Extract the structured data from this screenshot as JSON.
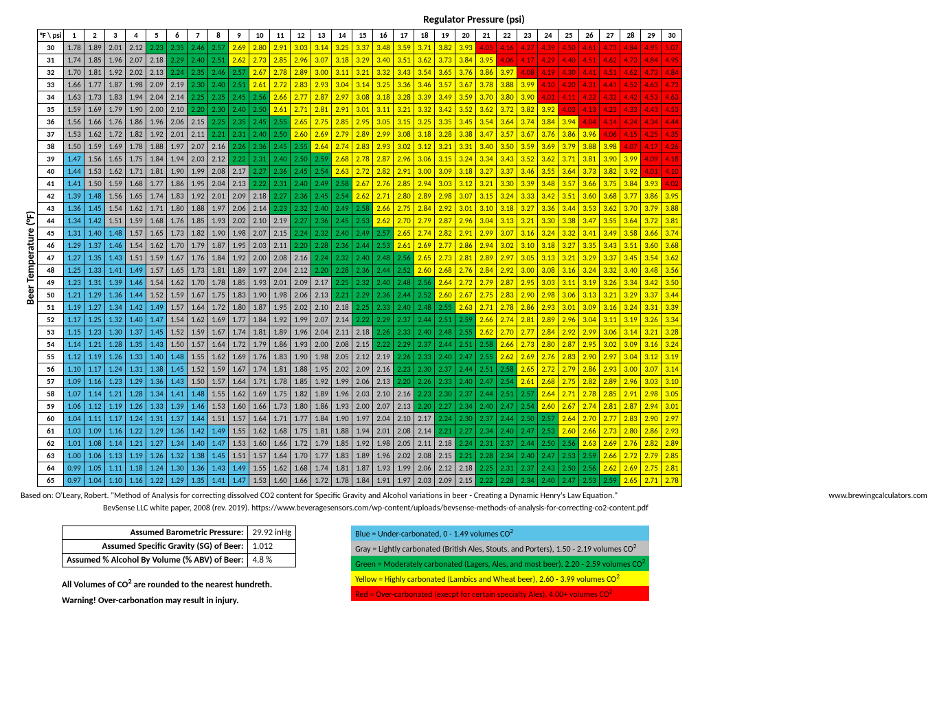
{
  "title_top": "Regulator Pressure (psi)",
  "y_axis_label": "Beer Temperature (°F)",
  "corner_label": "°F \\ psi",
  "psi_headers": [
    1,
    2,
    3,
    4,
    5,
    6,
    7,
    8,
    9,
    10,
    11,
    12,
    13,
    14,
    15,
    16,
    17,
    18,
    19,
    20,
    21,
    22,
    23,
    24,
    25,
    26,
    27,
    28,
    29,
    30
  ],
  "temps": [
    30,
    31,
    32,
    33,
    34,
    35,
    36,
    37,
    38,
    39,
    40,
    41,
    42,
    43,
    44,
    45,
    46,
    47,
    48,
    49,
    50,
    51,
    52,
    53,
    54,
    55,
    56,
    57,
    58,
    59,
    60,
    61,
    62,
    63,
    64,
    65
  ],
  "rows": [
    [
      1.78,
      1.89,
      2.01,
      2.12,
      2.23,
      2.35,
      2.46,
      2.57,
      2.69,
      2.8,
      2.91,
      3.03,
      3.14,
      3.25,
      3.37,
      3.48,
      3.59,
      3.71,
      3.82,
      3.93,
      4.05,
      4.16,
      4.27,
      4.39,
      4.5,
      4.61,
      4.73,
      4.84,
      4.95,
      5.07
    ],
    [
      1.74,
      1.85,
      1.96,
      2.07,
      2.18,
      2.29,
      2.4,
      2.51,
      2.62,
      2.73,
      2.85,
      2.96,
      3.07,
      3.18,
      3.29,
      3.4,
      3.51,
      3.62,
      3.73,
      3.84,
      3.95,
      4.06,
      4.17,
      4.29,
      4.4,
      4.51,
      4.62,
      4.73,
      4.84,
      4.95
    ],
    [
      1.7,
      1.81,
      1.92,
      2.02,
      2.13,
      2.24,
      2.35,
      2.46,
      2.57,
      2.67,
      2.78,
      2.89,
      3.0,
      3.11,
      3.21,
      3.32,
      3.43,
      3.54,
      3.65,
      3.76,
      3.86,
      3.97,
      4.08,
      4.19,
      4.3,
      4.41,
      4.51,
      4.62,
      4.73,
      4.84
    ],
    [
      1.66,
      1.77,
      1.87,
      1.98,
      2.09,
      2.19,
      2.3,
      2.4,
      2.51,
      2.61,
      2.72,
      2.83,
      2.93,
      3.04,
      3.14,
      3.25,
      3.36,
      3.46,
      3.57,
      3.67,
      3.78,
      3.88,
      3.99,
      4.1,
      4.2,
      4.31,
      4.41,
      4.52,
      4.63,
      4.73
    ],
    [
      1.63,
      1.73,
      1.83,
      1.94,
      2.04,
      2.14,
      2.25,
      2.35,
      2.45,
      2.56,
      2.66,
      2.77,
      2.87,
      2.97,
      3.08,
      3.18,
      3.28,
      3.39,
      3.49,
      3.59,
      3.7,
      3.8,
      3.9,
      4.01,
      4.11,
      4.22,
      4.32,
      4.42,
      4.53,
      4.63
    ],
    [
      1.59,
      1.69,
      1.79,
      1.9,
      2.0,
      2.1,
      2.2,
      2.3,
      2.4,
      2.5,
      2.61,
      2.71,
      2.81,
      2.91,
      3.01,
      3.11,
      3.21,
      3.32,
      3.42,
      3.52,
      3.62,
      3.72,
      3.82,
      3.92,
      4.03,
      4.13,
      4.23,
      4.33,
      4.43,
      4.53
    ],
    [
      1.56,
      1.66,
      1.76,
      1.86,
      1.96,
      2.06,
      2.15,
      2.25,
      2.35,
      2.45,
      2.55,
      2.65,
      2.75,
      2.85,
      2.95,
      3.05,
      3.15,
      3.25,
      3.35,
      3.45,
      3.54,
      3.64,
      3.74,
      3.84,
      3.94,
      4.04,
      4.14,
      4.24,
      4.34,
      4.44
    ],
    [
      1.53,
      1.62,
      1.72,
      1.82,
      1.92,
      2.01,
      2.11,
      2.21,
      2.31,
      2.4,
      2.5,
      2.6,
      2.69,
      2.79,
      2.89,
      2.99,
      3.08,
      3.18,
      3.28,
      3.38,
      3.47,
      3.57,
      3.67,
      3.76,
      3.86,
      3.96,
      4.06,
      4.15,
      4.25,
      4.35
    ],
    [
      1.5,
      1.59,
      1.69,
      1.78,
      1.88,
      1.97,
      2.07,
      2.16,
      2.26,
      2.36,
      2.45,
      2.55,
      2.64,
      2.74,
      2.83,
      2.93,
      3.02,
      3.12,
      3.21,
      3.31,
      3.4,
      3.5,
      3.59,
      3.69,
      3.79,
      3.88,
      3.98,
      4.07,
      4.17,
      4.26
    ],
    [
      1.47,
      1.56,
      1.65,
      1.75,
      1.84,
      1.94,
      2.03,
      2.12,
      2.22,
      2.31,
      2.4,
      2.5,
      2.59,
      2.68,
      2.78,
      2.87,
      2.96,
      3.06,
      3.15,
      3.24,
      3.34,
      3.43,
      3.52,
      3.62,
      3.71,
      3.81,
      3.9,
      3.99,
      4.09,
      4.18
    ],
    [
      1.44,
      1.53,
      1.62,
      1.71,
      1.81,
      1.9,
      1.99,
      2.08,
      2.17,
      2.27,
      2.36,
      2.45,
      2.54,
      2.63,
      2.72,
      2.82,
      2.91,
      3.0,
      3.09,
      3.18,
      3.27,
      3.37,
      3.46,
      3.55,
      3.64,
      3.73,
      3.82,
      3.92,
      4.01,
      4.1
    ],
    [
      1.41,
      1.5,
      1.59,
      1.68,
      1.77,
      1.86,
      1.95,
      2.04,
      2.13,
      2.22,
      2.31,
      2.4,
      2.49,
      2.58,
      2.67,
      2.76,
      2.85,
      2.94,
      3.03,
      3.12,
      3.21,
      3.3,
      3.39,
      3.48,
      3.57,
      3.66,
      3.75,
      3.84,
      3.93,
      4.02
    ],
    [
      1.39,
      1.48,
      1.56,
      1.65,
      1.74,
      1.83,
      1.92,
      2.01,
      2.09,
      2.18,
      2.27,
      2.36,
      2.45,
      2.54,
      2.62,
      2.71,
      2.8,
      2.89,
      2.98,
      3.07,
      3.15,
      3.24,
      3.33,
      3.42,
      3.51,
      3.6,
      3.68,
      3.77,
      3.86,
      3.95
    ],
    [
      1.36,
      1.45,
      1.54,
      1.62,
      1.71,
      1.8,
      1.88,
      1.97,
      2.06,
      2.14,
      2.23,
      2.32,
      2.4,
      2.49,
      2.58,
      2.66,
      2.75,
      2.84,
      2.92,
      3.01,
      3.1,
      3.18,
      3.27,
      3.36,
      3.44,
      3.53,
      3.62,
      3.7,
      3.79,
      3.88
    ],
    [
      1.34,
      1.42,
      1.51,
      1.59,
      1.68,
      1.76,
      1.85,
      1.93,
      2.02,
      2.1,
      2.19,
      2.27,
      2.36,
      2.45,
      2.53,
      2.62,
      2.7,
      2.79,
      2.87,
      2.96,
      3.04,
      3.13,
      3.21,
      3.3,
      3.38,
      3.47,
      3.55,
      3.64,
      3.72,
      3.81
    ],
    [
      1.31,
      1.4,
      1.48,
      1.57,
      1.65,
      1.73,
      1.82,
      1.9,
      1.98,
      2.07,
      2.15,
      2.24,
      2.32,
      2.4,
      2.49,
      2.57,
      2.65,
      2.74,
      2.82,
      2.91,
      2.99,
      3.07,
      3.16,
      3.24,
      3.32,
      3.41,
      3.49,
      3.58,
      3.66,
      3.74
    ],
    [
      1.29,
      1.37,
      1.46,
      1.54,
      1.62,
      1.7,
      1.79,
      1.87,
      1.95,
      2.03,
      2.11,
      2.2,
      2.28,
      2.36,
      2.44,
      2.53,
      2.61,
      2.69,
      2.77,
      2.86,
      2.94,
      3.02,
      3.1,
      3.18,
      3.27,
      3.35,
      3.43,
      3.51,
      3.6,
      3.68
    ],
    [
      1.27,
      1.35,
      1.43,
      1.51,
      1.59,
      1.67,
      1.76,
      1.84,
      1.92,
      2.0,
      2.08,
      2.16,
      2.24,
      2.32,
      2.4,
      2.48,
      2.56,
      2.65,
      2.73,
      2.81,
      2.89,
      2.97,
      3.05,
      3.13,
      3.21,
      3.29,
      3.37,
      3.45,
      3.54,
      3.62
    ],
    [
      1.25,
      1.33,
      1.41,
      1.49,
      1.57,
      1.65,
      1.73,
      1.81,
      1.89,
      1.97,
      2.04,
      2.12,
      2.2,
      2.28,
      2.36,
      2.44,
      2.52,
      2.6,
      2.68,
      2.76,
      2.84,
      2.92,
      3.0,
      3.08,
      3.16,
      3.24,
      3.32,
      3.4,
      3.48,
      3.56
    ],
    [
      1.23,
      1.31,
      1.39,
      1.46,
      1.54,
      1.62,
      1.7,
      1.78,
      1.85,
      1.93,
      2.01,
      2.09,
      2.17,
      2.25,
      2.32,
      2.4,
      2.48,
      2.56,
      2.64,
      2.72,
      2.79,
      2.87,
      2.95,
      3.03,
      3.11,
      3.19,
      3.26,
      3.34,
      3.42,
      3.5
    ],
    [
      1.21,
      1.29,
      1.36,
      1.44,
      1.52,
      1.59,
      1.67,
      1.75,
      1.83,
      1.9,
      1.98,
      2.06,
      2.13,
      2.21,
      2.29,
      2.36,
      2.44,
      2.52,
      2.6,
      2.67,
      2.75,
      2.83,
      2.9,
      2.98,
      3.06,
      3.13,
      3.21,
      3.29,
      3.37,
      3.44
    ],
    [
      1.19,
      1.27,
      1.34,
      1.42,
      1.49,
      1.57,
      1.64,
      1.72,
      1.8,
      1.87,
      1.95,
      2.02,
      2.1,
      2.18,
      2.25,
      2.33,
      2.4,
      2.48,
      2.55,
      2.63,
      2.71,
      2.78,
      2.86,
      2.93,
      3.01,
      3.09,
      3.16,
      3.24,
      3.31,
      3.39
    ],
    [
      1.17,
      1.25,
      1.32,
      1.4,
      1.47,
      1.54,
      1.62,
      1.69,
      1.77,
      1.84,
      1.92,
      1.99,
      2.07,
      2.14,
      2.22,
      2.29,
      2.37,
      2.44,
      2.51,
      2.59,
      2.66,
      2.74,
      2.81,
      2.89,
      2.96,
      3.04,
      3.11,
      3.19,
      3.26,
      3.34
    ],
    [
      1.15,
      1.23,
      1.3,
      1.37,
      1.45,
      1.52,
      1.59,
      1.67,
      1.74,
      1.81,
      1.89,
      1.96,
      2.04,
      2.11,
      2.18,
      2.26,
      2.33,
      2.4,
      2.48,
      2.55,
      2.62,
      2.7,
      2.77,
      2.84,
      2.92,
      2.99,
      3.06,
      3.14,
      3.21,
      3.28
    ],
    [
      1.14,
      1.21,
      1.28,
      1.35,
      1.43,
      1.5,
      1.57,
      1.64,
      1.72,
      1.79,
      1.86,
      1.93,
      2.0,
      2.08,
      2.15,
      2.22,
      2.29,
      2.37,
      2.44,
      2.51,
      2.58,
      2.66,
      2.73,
      2.8,
      2.87,
      2.95,
      3.02,
      3.09,
      3.16,
      3.24
    ],
    [
      1.12,
      1.19,
      1.26,
      1.33,
      1.4,
      1.48,
      1.55,
      1.62,
      1.69,
      1.76,
      1.83,
      1.9,
      1.98,
      2.05,
      2.12,
      2.19,
      2.26,
      2.33,
      2.4,
      2.47,
      2.55,
      2.62,
      2.69,
      2.76,
      2.83,
      2.9,
      2.97,
      3.04,
      3.12,
      3.19
    ],
    [
      1.1,
      1.17,
      1.24,
      1.31,
      1.38,
      1.45,
      1.52,
      1.59,
      1.67,
      1.74,
      1.81,
      1.88,
      1.95,
      2.02,
      2.09,
      2.16,
      2.23,
      2.3,
      2.37,
      2.44,
      2.51,
      2.58,
      2.65,
      2.72,
      2.79,
      2.86,
      2.93,
      3.0,
      3.07,
      3.14
    ],
    [
      1.09,
      1.16,
      1.23,
      1.29,
      1.36,
      1.43,
      1.5,
      1.57,
      1.64,
      1.71,
      1.78,
      1.85,
      1.92,
      1.99,
      2.06,
      2.13,
      2.2,
      2.26,
      2.33,
      2.4,
      2.47,
      2.54,
      2.61,
      2.68,
      2.75,
      2.82,
      2.89,
      2.96,
      3.03,
      3.1
    ],
    [
      1.07,
      1.14,
      1.21,
      1.28,
      1.34,
      1.41,
      1.48,
      1.55,
      1.62,
      1.69,
      1.75,
      1.82,
      1.89,
      1.96,
      2.03,
      2.1,
      2.16,
      2.23,
      2.3,
      2.37,
      2.44,
      2.51,
      2.57,
      2.64,
      2.71,
      2.78,
      2.85,
      2.91,
      2.98,
      3.05
    ],
    [
      1.06,
      1.12,
      1.19,
      1.26,
      1.33,
      1.39,
      1.46,
      1.53,
      1.6,
      1.66,
      1.73,
      1.8,
      1.86,
      1.93,
      2.0,
      2.07,
      2.13,
      2.2,
      2.27,
      2.34,
      2.4,
      2.47,
      2.54,
      2.6,
      2.67,
      2.74,
      2.81,
      2.87,
      2.94,
      3.01
    ],
    [
      1.04,
      1.11,
      1.17,
      1.24,
      1.31,
      1.37,
      1.44,
      1.51,
      1.57,
      1.64,
      1.71,
      1.77,
      1.84,
      1.9,
      1.97,
      2.04,
      2.1,
      2.17,
      2.24,
      2.3,
      2.37,
      2.44,
      2.5,
      2.57,
      2.64,
      2.7,
      2.77,
      2.83,
      2.9,
      2.97
    ],
    [
      1.03,
      1.09,
      1.16,
      1.22,
      1.29,
      1.36,
      1.42,
      1.49,
      1.55,
      1.62,
      1.68,
      1.75,
      1.81,
      1.88,
      1.94,
      2.01,
      2.08,
      2.14,
      2.21,
      2.27,
      2.34,
      2.4,
      2.47,
      2.53,
      2.6,
      2.66,
      2.73,
      2.8,
      2.86,
      2.93
    ],
    [
      1.01,
      1.08,
      1.14,
      1.21,
      1.27,
      1.34,
      1.4,
      1.47,
      1.53,
      1.6,
      1.66,
      1.72,
      1.79,
      1.85,
      1.92,
      1.98,
      2.05,
      2.11,
      2.18,
      2.24,
      2.31,
      2.37,
      2.44,
      2.5,
      2.56,
      2.63,
      2.69,
      2.76,
      2.82,
      2.89
    ],
    [
      1.0,
      1.06,
      1.13,
      1.19,
      1.26,
      1.32,
      1.38,
      1.45,
      1.51,
      1.57,
      1.64,
      1.7,
      1.77,
      1.83,
      1.89,
      1.96,
      2.02,
      2.08,
      2.15,
      2.21,
      2.28,
      2.34,
      2.4,
      2.47,
      2.53,
      2.59,
      2.66,
      2.72,
      2.79,
      2.85
    ],
    [
      0.99,
      1.05,
      1.11,
      1.18,
      1.24,
      1.3,
      1.36,
      1.43,
      1.49,
      1.55,
      1.62,
      1.68,
      1.74,
      1.81,
      1.87,
      1.93,
      1.99,
      2.06,
      2.12,
      2.18,
      2.25,
      2.31,
      2.37,
      2.43,
      2.5,
      2.56,
      2.62,
      2.69,
      2.75,
      2.81
    ],
    [
      0.97,
      1.04,
      1.1,
      1.16,
      1.22,
      1.29,
      1.35,
      1.41,
      1.47,
      1.53,
      1.6,
      1.66,
      1.72,
      1.78,
      1.84,
      1.91,
      1.97,
      2.03,
      2.09,
      2.15,
      2.22,
      2.28,
      2.34,
      2.4,
      2.47,
      2.53,
      2.59,
      2.65,
      2.71,
      2.78
    ]
  ],
  "colors": {
    "blue": "#5bc2e7",
    "gray": "#c0c0c0",
    "green": "#00b050",
    "yellow": "#ffff00",
    "red": "#ff0000"
  },
  "thresholds": {
    "blue_max": 1.49,
    "gray_max": 2.19,
    "green_max": 2.59,
    "yellow_max": 3.99
  },
  "citation_main": "Based on:  O'Leary, Robert. \"Method of Analysis for correcting dissolved CO2 content for Specific Gravity and Alcohol variations in beer - Creating a Dynamic Henry's Law Equation.\"",
  "citation_site": "www.brewingcalculators.com",
  "citation_sub": "BevSense LLC white paper, 2008 (rev. 2019). https://www.beveragesensors.com/wp-content/uploads/bevsense-methods-of-analysis-for-correcting-co2-content.pdf",
  "assumptions": [
    {
      "label": "Assumed Barometric Pressure:",
      "value": "29.92  inHg"
    },
    {
      "label": "Assumed Specific Gravity (SG) of Beer:",
      "value": "1.012"
    },
    {
      "label": "Assumed % Alcohol By Volume (% ABV) of Beer:",
      "value": "4.8  %"
    }
  ],
  "legend": [
    {
      "color": "blue",
      "text": "Blue = Under-carbonated, 0 - 1.49 volumes CO"
    },
    {
      "color": "gray",
      "text": "Gray = Lightly carbonated (British Ales, Stouts, and Porters), 1.50 - 2.19 volumes CO"
    },
    {
      "color": "green",
      "text": "Green = Moderately carbonated (Lagers, Ales, and most beer), 2.20 - 2.59 volumes CO"
    },
    {
      "color": "yellow",
      "text": "Yellow = Highly carbonated (Lambics and Wheat beer), 2.60 - 3.99 volumes CO"
    },
    {
      "color": "red",
      "text": "Red = Over-carbonated (execpt for certain specialty Ales), 4.00+ volumes CO"
    }
  ],
  "note_rounded": "All Volumes of CO",
  "note_rounded_tail": " are rounded to the nearest hundreth.",
  "note_warning": "Warning! Over-carbonation may result in injury."
}
